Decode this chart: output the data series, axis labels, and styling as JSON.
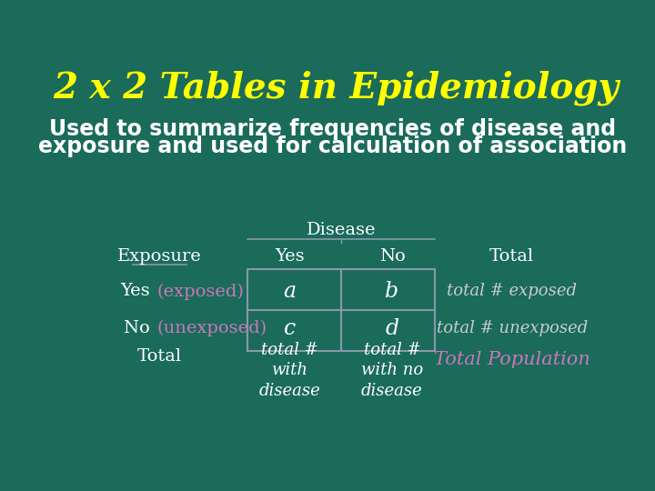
{
  "title": "2 x 2 Tables in Epidemiology",
  "subtitle_line1": "Used to summarize frequencies of disease and",
  "subtitle_line2": "exposure and used for calculation of association",
  "background_color": "#1a6b5a",
  "title_color": "#ffff00",
  "white_color": "#ffffff",
  "pink_color": "#cc77bb",
  "italic_color": "#cccccc",
  "table_line_color": "#8899aa",
  "title_fontsize": 28,
  "subtitle_fontsize": 17,
  "table_label_fontsize": 14,
  "table_cell_fontsize": 17,
  "total_pop_fontsize": 15,
  "col_exposure": 110,
  "col_yes": 295,
  "col_no": 440,
  "col_total": 610,
  "row_disease_label": 295,
  "row_header": 258,
  "row_yes_exposed": 208,
  "row_no_unexposed": 155,
  "row_total_label": 95
}
